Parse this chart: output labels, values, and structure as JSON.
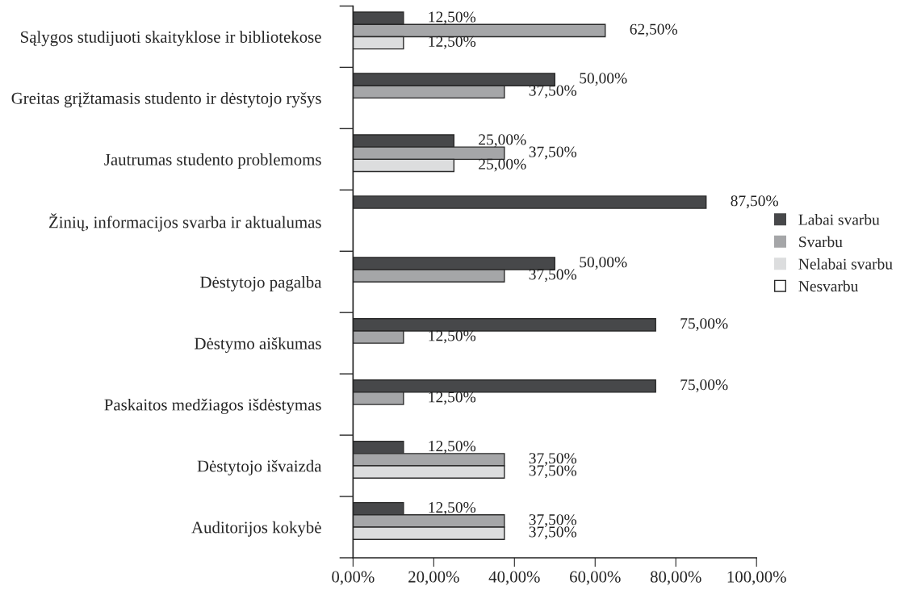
{
  "chart_data": {
    "type": "bar",
    "orientation": "horizontal",
    "categories": [
      "Sąlygos studijuoti skaityklose ir bibliotekose",
      "Greitas grįžtamasis studento ir dėstytojo ryšys",
      "Jautrumas studento problemoms",
      "Žinių, informacijos svarba ir aktualumas",
      "Dėstytojo pagalba",
      "Dėstymo aiškumas",
      "Paskaitos medžiagos išdėstymas",
      "Dėstytojo išvaizda",
      "Auditorijos kokybė"
    ],
    "series": [
      {
        "name": "Labai svarbu",
        "color": "#47484a",
        "values": [
          12.5,
          50,
          25,
          87.5,
          50,
          75,
          75,
          12.5,
          12.5
        ],
        "value_labels": [
          "12,50%",
          "50,00%",
          "25,00%",
          "87,50%",
          "50,00%",
          "75,00%",
          "75,00%",
          "12,50%",
          "12,50%"
        ]
      },
      {
        "name": "Svarbu",
        "color": "#a5a6a8",
        "values": [
          62.5,
          37.5,
          37.5,
          null,
          37.5,
          12.5,
          12.5,
          37.5,
          37.5
        ],
        "value_labels": [
          "62,50%",
          "37,50%",
          "37,50%",
          null,
          "37,50%",
          "12,50%",
          "12,50%",
          "37,50%",
          "37,50%"
        ]
      },
      {
        "name": "Nelabai svarbu",
        "color": "#dcddde",
        "values": [
          12.5,
          null,
          25,
          null,
          null,
          null,
          null,
          37.5,
          37.5
        ],
        "value_labels": [
          "12,50%",
          null,
          "25,00%",
          null,
          null,
          null,
          null,
          "37,50%",
          "37,50%"
        ]
      },
      {
        "name": "Nesvarbu",
        "color": "#ffffff",
        "values": [
          null,
          null,
          null,
          null,
          null,
          null,
          null,
          null,
          null
        ]
      }
    ],
    "xlim": [
      0,
      100
    ],
    "xticks": [
      {
        "value": 0,
        "label": "0,00%"
      },
      {
        "value": 20,
        "label": "20,00%"
      },
      {
        "value": 40,
        "label": "40,00%"
      },
      {
        "value": 60,
        "label": "60,00%"
      },
      {
        "value": 80,
        "label": "80,00%"
      },
      {
        "value": 100,
        "label": "100,00%"
      }
    ],
    "grid": false,
    "legend": "right"
  }
}
